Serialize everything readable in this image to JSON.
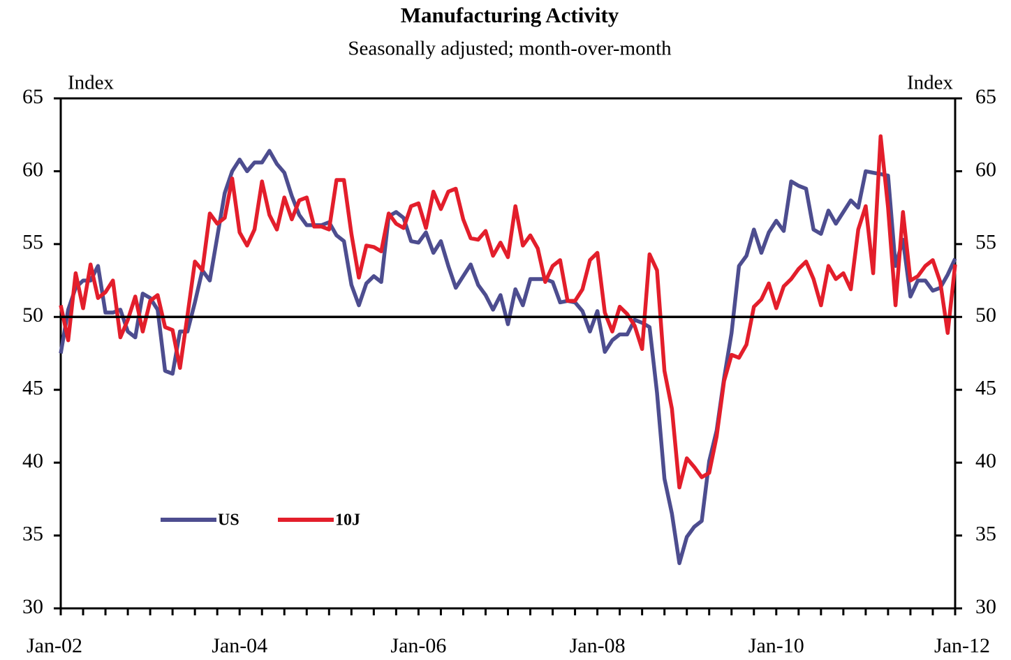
{
  "chart_data": {
    "type": "line",
    "title": "Manufacturing Activity",
    "subtitle": "Seasonally adjusted; month-over-month",
    "y_label": "Index",
    "y2_label": "Index",
    "categories": [
      "Jan-02",
      null,
      null,
      null,
      null,
      null,
      null,
      null,
      null,
      null,
      null,
      null,
      null,
      null,
      null,
      null,
      null,
      null,
      null,
      null,
      null,
      null,
      null,
      null,
      "Jan-04",
      null,
      null,
      null,
      null,
      null,
      null,
      null,
      null,
      null,
      null,
      null,
      null,
      null,
      null,
      null,
      null,
      null,
      null,
      null,
      null,
      null,
      null,
      null,
      "Jan-06",
      null,
      null,
      null,
      null,
      null,
      null,
      null,
      null,
      null,
      null,
      null,
      null,
      null,
      null,
      null,
      null,
      null,
      null,
      null,
      null,
      null,
      null,
      null,
      "Jan-08",
      null,
      null,
      null,
      null,
      null,
      null,
      null,
      null,
      null,
      null,
      null,
      null,
      null,
      null,
      null,
      null,
      null,
      null,
      null,
      null,
      null,
      null,
      null,
      "Jan-10",
      null,
      null,
      null,
      null,
      null,
      null,
      null,
      null,
      null,
      null,
      null,
      null,
      null,
      null,
      null,
      null,
      null,
      null,
      null,
      null,
      null,
      null,
      null,
      "Jan-12"
    ],
    "series": [
      {
        "name": "US",
        "color": "#4d4d8f",
        "values": [
          47.5,
          50.5,
          52,
          52.5,
          52.5,
          53.5,
          50.3,
          50.3,
          50.5,
          49,
          48.6,
          51.6,
          51.3,
          50.5,
          46.3,
          46.1,
          49,
          49,
          51,
          53.2,
          52.5,
          55.5,
          58.5,
          60,
          60.8,
          60,
          60.6,
          60.6,
          61.4,
          60.5,
          59.9,
          58.3,
          57,
          56.3,
          56.3,
          56.3,
          56.5,
          55.6,
          55.2,
          52.2,
          50.8,
          52.3,
          52.8,
          52.4,
          56.9,
          57.2,
          56.8,
          55.2,
          55.1,
          55.8,
          54.4,
          55.2,
          53.5,
          52,
          52.8,
          53.6,
          52.2,
          51.5,
          50.5,
          51.5,
          49.5,
          51.9,
          50.8,
          52.6,
          52.6,
          52.6,
          52.4,
          51,
          51.1,
          51,
          50.4,
          49,
          50.4,
          47.6,
          48.4,
          48.8,
          48.8,
          49.8,
          49.6,
          49.3,
          44.8,
          38.9,
          36.5,
          33.1,
          34.9,
          35.6,
          36,
          40.1,
          42.2,
          45.8,
          48.9,
          53.5,
          54.2,
          56,
          54.4,
          55.8,
          56.6,
          55.9,
          59.3,
          59,
          58.8,
          56,
          55.7,
          57.3,
          56.4,
          57.2,
          58,
          57.5,
          60,
          59.9,
          59.8,
          59.7,
          53.5,
          55.3,
          51.4,
          52.5,
          52.5,
          51.8,
          52,
          52.9,
          54
        ]
      },
      {
        "name": "10J",
        "color": "#e31e2b",
        "values": [
          50.8,
          48.4,
          53,
          50.6,
          53.6,
          51.3,
          51.7,
          52.5,
          48.6,
          49.8,
          51.4,
          49,
          51.1,
          51.5,
          49.3,
          49.1,
          46.5,
          50.1,
          53.8,
          53.2,
          57.1,
          56.4,
          56.8,
          59.5,
          55.8,
          54.9,
          56,
          59.3,
          57,
          56,
          58.2,
          56.7,
          58,
          58.2,
          56.2,
          56.2,
          56,
          59.4,
          59.4,
          55.7,
          52.7,
          54.9,
          54.8,
          54.5,
          57.1,
          56.4,
          56.1,
          57.6,
          57.8,
          56.1,
          58.6,
          57.4,
          58.6,
          58.8,
          56.7,
          55.4,
          55.3,
          55.9,
          54.2,
          55.1,
          54.1,
          57.6,
          54.9,
          55.6,
          54.7,
          52.4,
          53.5,
          53.9,
          51.1,
          51.1,
          51.9,
          53.9,
          54.4,
          50.3,
          49,
          50.7,
          50.2,
          49.4,
          47.8,
          54.3,
          53.2,
          46.3,
          43.7,
          38.3,
          40.3,
          39.7,
          39,
          39.3,
          41.8,
          45.6,
          47.4,
          47.2,
          48.1,
          50.7,
          51.2,
          52.3,
          50.6,
          52.1,
          52.6,
          53.3,
          53.8,
          52.6,
          50.8,
          53.5,
          52.6,
          53,
          51.9,
          56,
          57.6,
          53,
          62.4,
          57.5,
          50.8,
          57.2,
          52.5,
          52.8,
          53.5,
          53.9,
          52.4,
          48.9,
          53.6
        ]
      }
    ],
    "ylim": [
      30,
      65
    ],
    "yticks": [
      30,
      35,
      40,
      45,
      50,
      55,
      60,
      65
    ],
    "y2lim": [
      30,
      65
    ],
    "y2ticks": [
      30,
      35,
      40,
      45,
      50,
      55,
      60,
      65
    ],
    "reference_line": 50
  }
}
